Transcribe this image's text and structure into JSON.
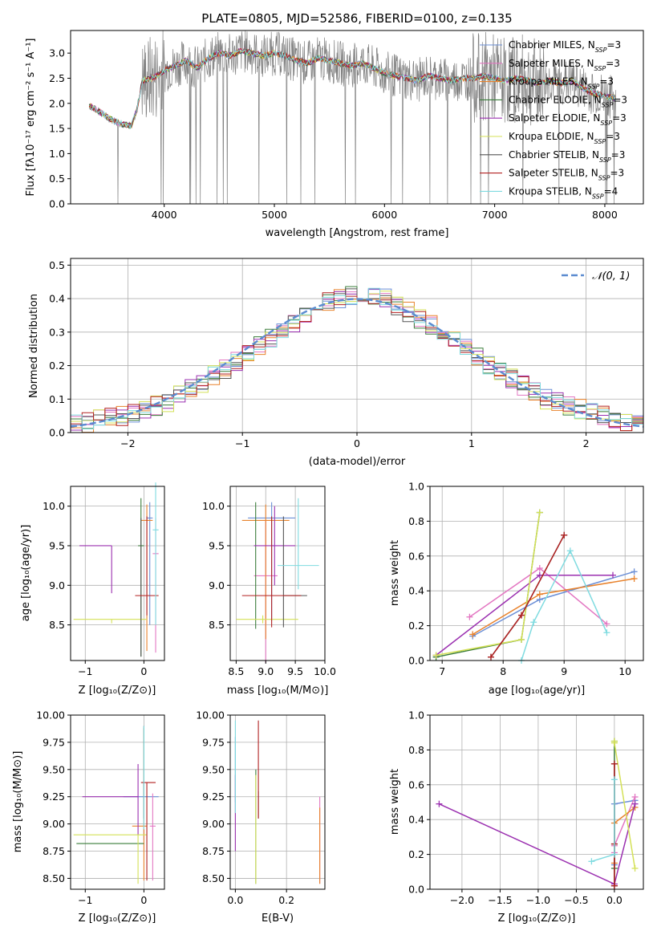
{
  "figure_title": "PLATE=0805, MJD=52586, FIBERID=0100, z=0.135",
  "model_colors": [
    "#6b8fd6",
    "#e377c2",
    "#e8822c",
    "#3a7d3a",
    "#9b30b0",
    "#d4e157",
    "#555555",
    "#b22222",
    "#7fdbe0"
  ],
  "chart_data": [
    {
      "type": "line",
      "panel": "spectrum",
      "title": "PLATE=0805, MJD=52586, FIBERID=0100, z=0.135",
      "xlabel": "wavelength [Angstrom, rest frame]",
      "ylabel": "Flux [fλ10⁻¹⁷ erg cm⁻² s⁻¹ A⁻¹]",
      "xlim": [
        3150,
        8350
      ],
      "ylim": [
        0,
        3.45
      ],
      "xticks": [
        4000,
        5000,
        6000,
        7000,
        8000
      ],
      "yticks": [
        0.0,
        0.5,
        1.0,
        1.5,
        2.0,
        2.5,
        3.0
      ],
      "grid": false,
      "legend_position": "top-right",
      "legend": [
        "Chabrier MILES, N_SSP=3",
        "Salpeter MILES, N_SSP=3",
        "Kroupa MILES, N_SSP=3",
        "Chabrier ELODIE, N_SSP=3",
        "Salpeter ELODIE, N_SSP=3",
        "Kroupa ELODIE, N_SSP=3",
        "Chabrier STELIB, N_SSP=3",
        "Salpeter STELIB, N_SSP=3",
        "Kroupa STELIB, N_SSP=4"
      ],
      "data_series": {
        "x": [
          3320,
          3400,
          3500,
          3600,
          3700,
          3750,
          3800,
          3900,
          4000,
          4100,
          4200,
          4300,
          4400,
          4500,
          4600,
          4700,
          4800,
          4900,
          5000,
          5100,
          5200,
          5300,
          5400,
          5500,
          5600,
          5700,
          5800,
          5900,
          6000,
          6100,
          6200,
          6300,
          6400,
          6500,
          6600,
          6700,
          6800,
          6900,
          7000,
          7100,
          7200,
          7300,
          7400,
          7500,
          7600,
          7700,
          7800,
          7900,
          8000,
          8100
        ],
        "y": [
          1.95,
          1.85,
          1.7,
          1.6,
          1.55,
          1.85,
          2.45,
          2.5,
          2.65,
          2.75,
          2.85,
          2.7,
          2.9,
          3.0,
          2.95,
          3.05,
          3.0,
          2.95,
          3.0,
          2.95,
          2.85,
          2.8,
          2.9,
          2.85,
          2.8,
          2.75,
          2.8,
          2.7,
          2.6,
          2.55,
          2.5,
          2.45,
          2.55,
          2.5,
          2.45,
          2.5,
          2.5,
          2.55,
          2.5,
          2.45,
          2.5,
          2.45,
          2.4,
          2.45,
          2.4,
          2.45,
          2.3,
          2.2,
          2.15,
          2.1
        ]
      }
    },
    {
      "type": "line",
      "panel": "residual-histogram",
      "xlabel": "(data-model)/error",
      "ylabel": "Normed distribution",
      "xlim": [
        -2.5,
        2.5
      ],
      "ylim": [
        0,
        0.52
      ],
      "xticks": [
        -2,
        -1,
        0,
        1,
        2
      ],
      "yticks": [
        0.0,
        0.1,
        0.2,
        0.3,
        0.4,
        0.5
      ],
      "grid": true,
      "legend_position": "top-right",
      "legend": [
        "𝒩(0, 1)"
      ],
      "bin_edges": [
        -2.5,
        -2.4,
        -2.3,
        -2.2,
        -2.1,
        -2.0,
        -1.9,
        -1.8,
        -1.7,
        -1.6,
        -1.5,
        -1.4,
        -1.3,
        -1.2,
        -1.1,
        -1.0,
        -0.9,
        -0.8,
        -0.7,
        -0.6,
        -0.5,
        -0.4,
        -0.3,
        -0.2,
        -0.1,
        0.0,
        0.1,
        0.2,
        0.3,
        0.4,
        0.5,
        0.6,
        0.7,
        0.8,
        0.9,
        1.0,
        1.1,
        1.2,
        1.3,
        1.4,
        1.5,
        1.6,
        1.7,
        1.8,
        1.9,
        2.0,
        2.1,
        2.2,
        2.3,
        2.4,
        2.5
      ],
      "histogram_base": [
        0.025,
        0.03,
        0.04,
        0.045,
        0.05,
        0.06,
        0.07,
        0.08,
        0.09,
        0.11,
        0.13,
        0.15,
        0.17,
        0.19,
        0.21,
        0.23,
        0.26,
        0.28,
        0.31,
        0.33,
        0.35,
        0.37,
        0.39,
        0.4,
        0.41,
        0.42,
        0.41,
        0.4,
        0.38,
        0.36,
        0.34,
        0.32,
        0.3,
        0.28,
        0.25,
        0.23,
        0.2,
        0.18,
        0.16,
        0.14,
        0.12,
        0.1,
        0.09,
        0.08,
        0.07,
        0.06,
        0.05,
        0.04,
        0.035,
        0.03
      ],
      "gaussian": {
        "mean": 0,
        "sigma": 1
      }
    },
    {
      "type": "scatter",
      "panel": "Z-vs-age",
      "xlabel": "Z [log₁₀(Z/Z⊙)]",
      "ylabel": "age  [log₁₀(age/yr)]",
      "xlim": [
        -1.25,
        0.35
      ],
      "ylim": [
        8.05,
        10.25
      ],
      "xticks": [
        -1,
        0
      ],
      "yticks": [
        8.5,
        9.0,
        9.5,
        10.0
      ],
      "grid": true,
      "points": [
        {
          "x": 0.1,
          "y": 9.85,
          "xerr": 0.05,
          "yerr": [
            1.35,
            0.2
          ]
        },
        {
          "x": 0.2,
          "y": 9.4,
          "xerr": 0.05,
          "yerr": [
            1.25,
            0.45
          ]
        },
        {
          "x": 0.05,
          "y": 9.82,
          "xerr": 0.1,
          "yerr": [
            1.65,
            0.2
          ]
        },
        {
          "x": -0.05,
          "y": 9.5,
          "xerr": 0.05,
          "yerr": [
            1.4,
            0.6
          ]
        },
        {
          "x": -0.55,
          "y": 9.5,
          "xerr": [
            0.55,
            0.0
          ],
          "yerr": [
            0.6,
            0.0
          ]
        },
        {
          "x": -0.55,
          "y": 8.57,
          "xerr": [
            0.65,
            0.6
          ],
          "yerr": [
            0.05,
            0.0
          ]
        },
        {
          "x": -0.05,
          "y": 8.45,
          "xerr": 0.0,
          "yerr": [
            0.35,
            1.4
          ]
        },
        {
          "x": 0.05,
          "y": 8.87,
          "xerr": 0.2,
          "yerr": [
            0.25,
            1.0
          ]
        },
        {
          "x": 0.2,
          "y": 9.7,
          "xerr": 0.05,
          "yerr": [
            1.2,
            0.6
          ]
        }
      ]
    },
    {
      "type": "scatter",
      "panel": "mass-vs-age",
      "xlabel": "mass [log₁₀(M/M⊙)]",
      "xlim": [
        8.4,
        10.0
      ],
      "ylim": [
        8.05,
        10.25
      ],
      "xticks": [
        8.5,
        9.0,
        9.5,
        10.0
      ],
      "yticks": [
        8.5,
        9.0,
        9.5,
        10.0
      ],
      "grid": true,
      "points": [
        {
          "x": 9.1,
          "y": 9.85,
          "xerr": 0.4,
          "yerr": [
            1.3,
            0.2
          ]
        },
        {
          "x": 9.0,
          "y": 9.12,
          "xerr": 0.2,
          "yerr": [
            1.1,
            0.7
          ]
        },
        {
          "x": 9.0,
          "y": 9.82,
          "xerr": 0.4,
          "yerr": [
            1.5,
            0.2
          ]
        },
        {
          "x": 8.83,
          "y": 8.8,
          "xerr": 0.0,
          "yerr": [
            0.35,
            1.25
          ]
        },
        {
          "x": 9.15,
          "y": 9.5,
          "xerr": 0.35,
          "yerr": [
            0.5,
            0.5
          ]
        },
        {
          "x": 8.95,
          "y": 8.57,
          "xerr": [
            0.45,
            0.6
          ],
          "yerr": [
            0.05,
            0.05
          ]
        },
        {
          "x": 9.3,
          "y": 8.87,
          "xerr": [
            0.0,
            0.4
          ],
          "yerr": [
            0.4,
            1.0
          ]
        },
        {
          "x": 9.1,
          "y": 8.87,
          "xerr": 0.5,
          "yerr": [
            0.4,
            1.0
          ]
        },
        {
          "x": 9.55,
          "y": 9.25,
          "xerr": 0.35,
          "yerr": [
            0.3,
            0.85
          ]
        }
      ]
    },
    {
      "type": "line",
      "panel": "age-vs-mass-weight",
      "xlabel": "age  [log₁₀(age/yr)]",
      "ylabel": "mass weight",
      "xlim": [
        6.8,
        10.3
      ],
      "ylim": [
        0,
        1.0
      ],
      "xticks": [
        7,
        8,
        9,
        10
      ],
      "yticks": [
        0.0,
        0.2,
        0.4,
        0.6,
        0.8,
        1.0
      ],
      "grid": true,
      "series": [
        {
          "x": [
            7.5,
            8.6,
            10.15
          ],
          "y": [
            0.14,
            0.35,
            0.51
          ]
        },
        {
          "x": [
            7.45,
            8.6,
            9.7
          ],
          "y": [
            0.25,
            0.53,
            0.21
          ]
        },
        {
          "x": [
            7.5,
            8.6,
            10.15
          ],
          "y": [
            0.15,
            0.38,
            0.47
          ]
        },
        {
          "x": [
            6.9,
            8.3,
            8.6
          ],
          "y": [
            0.02,
            0.12,
            0.85
          ]
        },
        {
          "x": [
            6.9,
            8.6,
            9.8
          ],
          "y": [
            0.03,
            0.49,
            0.49
          ]
        },
        {
          "x": [
            6.9,
            8.3,
            8.6
          ],
          "y": [
            0.03,
            0.12,
            0.85
          ]
        },
        {
          "x": [
            7.8,
            8.3,
            9.0
          ],
          "y": [
            0.02,
            0.26,
            0.72
          ]
        },
        {
          "x": [
            7.8,
            8.3,
            9.0
          ],
          "y": [
            0.02,
            0.26,
            0.72
          ]
        },
        {
          "x": [
            8.3,
            8.5,
            9.1,
            9.7
          ],
          "y": [
            0.0,
            0.22,
            0.63,
            0.16
          ]
        }
      ]
    },
    {
      "type": "scatter",
      "panel": "Z-vs-mass",
      "xlabel": "Z [log₁₀(Z/Z⊙)]",
      "ylabel": "mass [log₁₀(M/M⊙)]",
      "xlim": [
        -1.25,
        0.35
      ],
      "ylim": [
        8.4,
        10.0
      ],
      "xticks": [
        -1,
        0
      ],
      "yticks": [
        8.5,
        8.75,
        9.0,
        9.25,
        9.5,
        9.75,
        10.0
      ],
      "grid": true,
      "points": [
        {
          "x": 0.0,
          "y": 9.25,
          "xerr": [
            0.35,
            0.25
          ],
          "yerr": [
            0.4,
            0.15
          ]
        },
        {
          "x": 0.15,
          "y": 8.98,
          "xerr": 0.05,
          "yerr": [
            0.5,
            0.3
          ]
        },
        {
          "x": 0.0,
          "y": 8.98,
          "xerr": [
            0.2,
            0.05
          ],
          "yerr": [
            0.5,
            0.9
          ]
        },
        {
          "x": 0.0,
          "y": 8.82,
          "xerr": [
            1.15,
            0.0
          ],
          "yerr": [
            0.0,
            0.0
          ]
        },
        {
          "x": -0.1,
          "y": 9.25,
          "xerr": [
            0.95,
            0.0
          ],
          "yerr": [
            0.35,
            0.3
          ]
        },
        {
          "x": -0.1,
          "y": 8.9,
          "xerr": [
            1.1,
            0.15
          ],
          "yerr": [
            0.45,
            0.0
          ]
        },
        {
          "x": 0.0,
          "y": 9.05,
          "xerr": 0.0,
          "yerr": [
            0.0,
            0.85
          ]
        },
        {
          "x": 0.05,
          "y": 9.38,
          "xerr": [
            0.1,
            0.15
          ],
          "yerr": [
            0.9,
            0.0
          ]
        },
        {
          "x": 0.0,
          "y": 9.25,
          "xerr": 0.0,
          "yerr": [
            0.3,
            0.65
          ]
        }
      ]
    },
    {
      "type": "scatter",
      "panel": "EBV-vs-mass",
      "xlabel": "E(B-V)",
      "xlim": [
        -0.02,
        0.35
      ],
      "ylim": [
        8.4,
        10.0
      ],
      "xticks": [
        0.0,
        0.2
      ],
      "yticks": [
        8.5,
        8.75,
        9.0,
        9.25,
        9.5,
        9.75,
        10.0
      ],
      "grid": true,
      "points": [
        {
          "x": 0.0,
          "y": 9.5,
          "xerr": 0.0,
          "yerr": [
            0.3,
            0.3
          ]
        },
        {
          "x": 0.33,
          "y": 9.1,
          "xerr": 0.0,
          "yerr": [
            0.65,
            0.15
          ]
        },
        {
          "x": 0.33,
          "y": 8.85,
          "xerr": 0.0,
          "yerr": [
            0.4,
            0.3
          ]
        },
        {
          "x": 0.08,
          "y": 9.0,
          "xerr": 0.0,
          "yerr": [
            0.55,
            0.5
          ]
        },
        {
          "x": 0.0,
          "y": 9.25,
          "xerr": 0.0,
          "yerr": [
            0.5,
            0.2
          ]
        },
        {
          "x": 0.08,
          "y": 8.95,
          "xerr": 0.0,
          "yerr": [
            0.5,
            0.5
          ]
        },
        {
          "x": 0.09,
          "y": 9.3,
          "xerr": 0.0,
          "yerr": [
            0.25,
            0.0
          ]
        },
        {
          "x": 0.09,
          "y": 9.45,
          "xerr": 0.0,
          "yerr": [
            0.4,
            0.5
          ]
        },
        {
          "x": 0.0,
          "y": 9.4,
          "xerr": 0.0,
          "yerr": [
            0.3,
            0.55
          ]
        }
      ]
    },
    {
      "type": "line",
      "panel": "Z-vs-mass-weight",
      "xlabel": "Z [log₁₀(Z/Z⊙)]",
      "ylabel": "mass weight",
      "xlim": [
        -2.42,
        0.38
      ],
      "ylim": [
        0,
        1.0
      ],
      "xticks": [
        -2.0,
        -1.5,
        -1.0,
        -0.5,
        0.0
      ],
      "yticks": [
        0.0,
        0.2,
        0.4,
        0.6,
        0.8,
        1.0
      ],
      "grid": true,
      "series": [
        {
          "x": [
            0.0,
            0.0,
            0.27
          ],
          "y": [
            0.14,
            0.49,
            0.51
          ]
        },
        {
          "x": [
            0.0,
            0.0,
            0.27
          ],
          "y": [
            0.21,
            0.25,
            0.53
          ]
        },
        {
          "x": [
            0.0,
            0.0,
            0.27
          ],
          "y": [
            0.15,
            0.38,
            0.47
          ]
        },
        {
          "x": [
            0.0,
            0.0,
            0.0
          ],
          "y": [
            0.02,
            0.12,
            0.85
          ]
        },
        {
          "x": [
            -2.3,
            0.0,
            0.27
          ],
          "y": [
            0.49,
            0.03,
            0.49
          ]
        },
        {
          "x": [
            0.0,
            0.0,
            0.27
          ],
          "y": [
            0.85,
            0.84,
            0.12
          ]
        },
        {
          "x": [
            0.0,
            0.0,
            0.0
          ],
          "y": [
            0.02,
            0.26,
            0.72
          ]
        },
        {
          "x": [
            0.0,
            0.0,
            0.0
          ],
          "y": [
            0.02,
            0.26,
            0.72
          ]
        },
        {
          "x": [
            -0.3,
            0.0,
            0.0
          ],
          "y": [
            0.16,
            0.2,
            0.63
          ]
        }
      ]
    }
  ]
}
